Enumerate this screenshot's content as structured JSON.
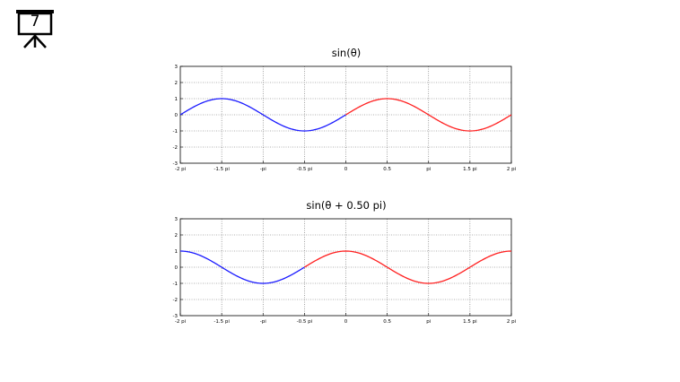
{
  "slide": {
    "number": "7"
  },
  "colors": {
    "before_zero": "#1a1aff",
    "after_zero": "#ff2020",
    "grid": "#666666",
    "axes": "#000000"
  },
  "chart_data": [
    {
      "type": "line",
      "title": "sin(θ)",
      "xlabel": "",
      "ylabel": "",
      "phase_shift_pi": 0,
      "x_range_pi": [
        -2,
        2
      ],
      "ylim": [
        -3,
        3
      ],
      "grid": true,
      "x_ticks": [
        {
          "value": -2,
          "label": "-2 pi"
        },
        {
          "value": -1.5,
          "label": "-1.5 pi"
        },
        {
          "value": -1,
          "label": "-pi"
        },
        {
          "value": -0.5,
          "label": "-0.5 pi"
        },
        {
          "value": 0,
          "label": "0"
        },
        {
          "value": 0.5,
          "label": "0.5"
        },
        {
          "value": 1,
          "label": "pi"
        },
        {
          "value": 1.5,
          "label": "1.5 pi"
        },
        {
          "value": 2,
          "label": "2 pi"
        }
      ],
      "y_ticks": [
        {
          "value": 3,
          "label": "3"
        },
        {
          "value": 2,
          "label": "2"
        },
        {
          "value": 1,
          "label": "1"
        },
        {
          "value": 0,
          "label": "0"
        },
        {
          "value": -1,
          "label": "-1"
        },
        {
          "value": -2,
          "label": "-2"
        },
        {
          "value": -3,
          "label": "-3"
        }
      ],
      "series": [
        {
          "color": "#1a1aff",
          "x_range_pi": [
            -2,
            0
          ]
        },
        {
          "color": "#ff2020",
          "x_range_pi": [
            0,
            2
          ]
        }
      ]
    },
    {
      "type": "line",
      "title": "sin(θ + 0.50 pi)",
      "xlabel": "",
      "ylabel": "",
      "phase_shift_pi": 0.5,
      "x_range_pi": [
        -2,
        2
      ],
      "ylim": [
        -3,
        3
      ],
      "grid": true,
      "x_ticks": [
        {
          "value": -2,
          "label": "-2 pi"
        },
        {
          "value": -1.5,
          "label": "-1.5 pi"
        },
        {
          "value": -1,
          "label": "-pi"
        },
        {
          "value": -0.5,
          "label": "-0.5 pi"
        },
        {
          "value": 0,
          "label": "0"
        },
        {
          "value": 0.5,
          "label": "0.5"
        },
        {
          "value": 1,
          "label": "pi"
        },
        {
          "value": 1.5,
          "label": "1.5 pi"
        },
        {
          "value": 2,
          "label": "2 pi"
        }
      ],
      "y_ticks": [
        {
          "value": 3,
          "label": "3"
        },
        {
          "value": 2,
          "label": "2"
        },
        {
          "value": 1,
          "label": "1"
        },
        {
          "value": 0,
          "label": "0"
        },
        {
          "value": -1,
          "label": "-1"
        },
        {
          "value": -2,
          "label": "-2"
        },
        {
          "value": -3,
          "label": "-3"
        }
      ],
      "series": [
        {
          "color": "#1a1aff",
          "x_range_pi": [
            -2,
            -0.5
          ]
        },
        {
          "color": "#ff2020",
          "x_range_pi": [
            -0.5,
            2
          ]
        }
      ]
    }
  ]
}
